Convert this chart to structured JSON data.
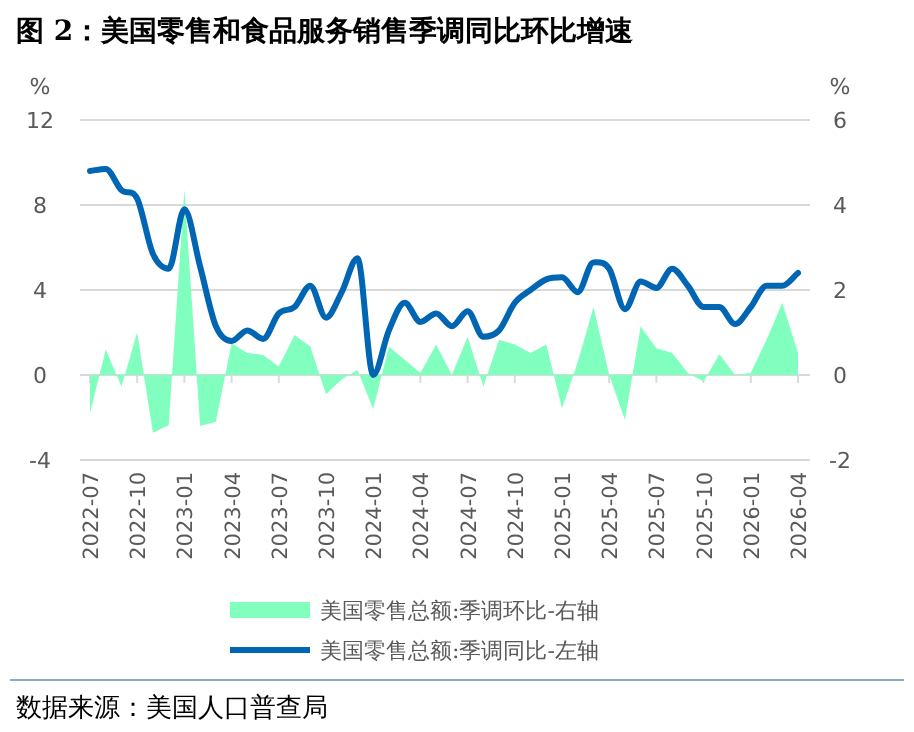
{
  "chart_data": {
    "type": "line",
    "title": "图 2：美国零售和食品服务销售季调同比环比增速",
    "ylabel": "%",
    "y2label": "%",
    "categories": [
      "2022-07",
      null,
      null,
      "2022-10",
      null,
      null,
      "2023-01",
      null,
      null,
      "2023-04",
      null,
      null,
      "2023-07",
      null,
      null,
      "2023-10",
      null,
      null,
      "2024-01",
      null,
      null,
      "2024-04",
      null,
      null,
      "2024-07",
      null,
      null,
      "2024-10",
      null,
      null,
      "2025-01",
      null,
      null,
      "2025-04",
      null,
      null,
      "2025-07",
      null,
      null,
      "2025-10",
      null,
      null,
      "2026-01",
      null,
      null,
      "2026-04"
    ],
    "series": [
      {
        "name": "美国零售总额:季调环比-右轴",
        "type": "area",
        "axis": "y2",
        "color": "#80ffbf",
        "values": [
          -0.9,
          0.6,
          -0.27,
          1.0,
          -1.36,
          -1.18,
          4.36,
          -1.2,
          -1.1,
          0.75,
          0.52,
          0.47,
          0.2,
          0.94,
          0.67,
          -0.45,
          -0.1,
          0.12,
          -0.8,
          0.67,
          0.36,
          0.05,
          0.72,
          0,
          0.9,
          -0.27,
          0.83,
          0.72,
          0.52,
          0.72,
          -0.78,
          0.3,
          1.6,
          0,
          -1.05,
          1.14,
          0.63,
          0.52,
          0.05,
          -0.15,
          0.49,
          0,
          0.05,
          0.83,
          1.7,
          0.52
        ]
      },
      {
        "name": "美国零售总额:季调同比-左轴",
        "color": "#0066b3",
        "values": [
          9.6,
          9.7,
          8.7,
          8.3,
          5.7,
          5.0,
          7.8,
          5.1,
          2.3,
          1.6,
          2.1,
          1.7,
          2.9,
          3.2,
          4.2,
          2.7,
          3.9,
          5.5,
          0.0,
          2.1,
          3.4,
          2.5,
          2.9,
          2.3,
          3.0,
          1.8,
          2.1,
          3.4,
          4.0,
          4.5,
          4.6,
          3.9,
          5.3,
          5.0,
          3.1,
          4.4,
          4.1,
          5.0,
          4.2,
          3.2,
          3.2,
          2.4,
          3.2,
          4.2,
          4.2,
          4.8
        ]
      }
    ],
    "ylim": [
      -4,
      12
    ],
    "yticks": [
      -4,
      0,
      4,
      8,
      12
    ],
    "y2lim": [
      -2,
      6
    ],
    "y2ticks": [
      -2,
      0,
      2,
      4,
      6
    ],
    "grid": "y",
    "legend": "bottom",
    "annotations": [
      "数据来源：美国人口普查局"
    ]
  }
}
